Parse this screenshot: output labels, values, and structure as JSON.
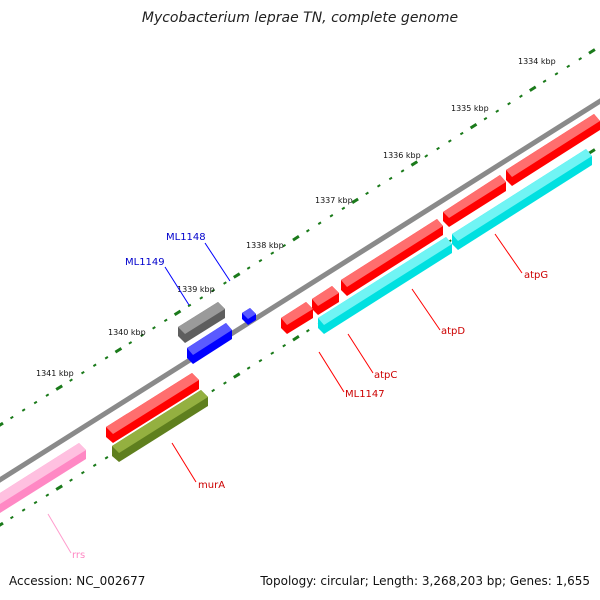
{
  "title": "Mycobacterium leprae TN, complete genome",
  "footer": {
    "accession": "Accession: NC_002677",
    "summary": "Topology: circular; Length: 3,268,203 bp; Genes: 1,655"
  },
  "scale_labels": [
    "1334 kbp",
    "1335 kbp",
    "1336 kbp",
    "1337 kbp",
    "1338 kbp",
    "1339 kbp",
    "1340 kbp",
    "1341 kbp"
  ],
  "gene_labels": {
    "ML1148": "ML1148",
    "ML1149": "ML1149",
    "atpG": "atpG",
    "atpD": "atpD",
    "atpC": "atpC",
    "ML1147": "ML1147",
    "murA": "murA",
    "rrs": "rrs"
  },
  "colors": {
    "backbone": "#808080",
    "tick": "#1a7a1a",
    "red": "#ff0000",
    "cyan": "#00e5e5",
    "blue": "#0000ff",
    "gray": "#6e6e6e",
    "olive": "#6b8e23",
    "pink": "#ff9ccd"
  }
}
